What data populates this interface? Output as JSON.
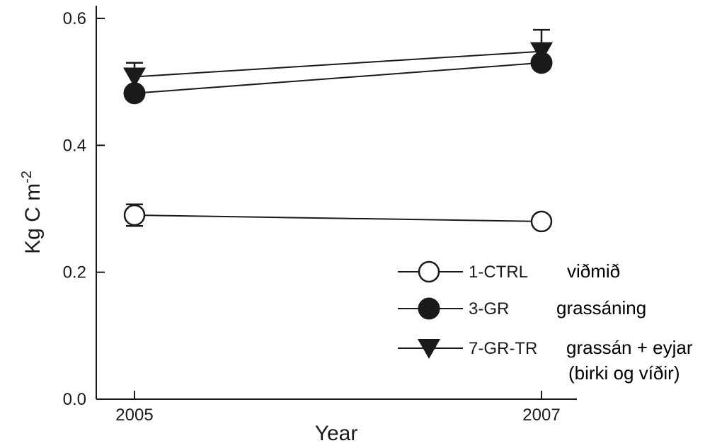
{
  "chart_data": {
    "type": "line",
    "xlabel": "Year",
    "ylabel": "Kg C m",
    "ylabel_superscript": "-2",
    "categories": [
      "2005",
      "2007"
    ],
    "ylim": [
      0.0,
      0.6
    ],
    "yticks": [
      "0.0",
      "0.2",
      "0.4",
      "0.6"
    ],
    "grid": false,
    "legend_position": "bottom-right",
    "series": [
      {
        "name": "1-CTRL",
        "note": "viðmið",
        "marker": "open-circle",
        "values": [
          0.29,
          0.28
        ],
        "errors": [
          0.017,
          0.0
        ]
      },
      {
        "name": "3-GR",
        "note": "grassáning",
        "marker": "filled-circle",
        "values": [
          0.482,
          0.53
        ],
        "errors": [
          0.0,
          0.0
        ]
      },
      {
        "name": "7-GR-TR",
        "note": "grassán + eyjar",
        "note2": "(birki og víðir)",
        "marker": "filled-triangle-down",
        "values": [
          0.508,
          0.548
        ],
        "errors": [
          0.022,
          0.034
        ]
      }
    ]
  }
}
